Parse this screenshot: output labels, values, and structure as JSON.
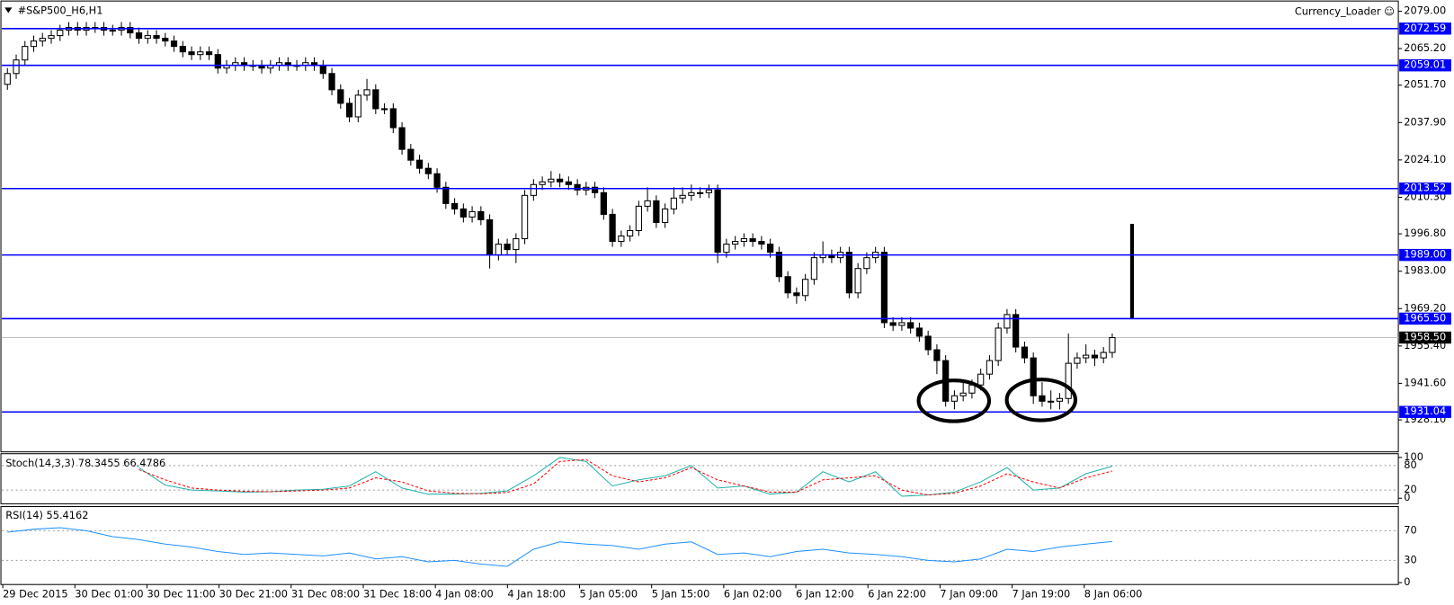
{
  "chart_data": [
    {
      "type": "candlestick",
      "title": "#S&P500_H6,H1",
      "corner_text": "Currency_Loader ☺",
      "open": [
        2052,
        2056,
        2061,
        2066,
        2068,
        2069,
        2070,
        2072,
        2073,
        2072,
        2073,
        2073,
        2072,
        2072,
        2073,
        2071,
        2069,
        2070,
        2069,
        2068,
        2066,
        2064,
        2063,
        2064,
        2063,
        2058,
        2059,
        2060,
        2059,
        2059,
        2058,
        2059,
        2060,
        2059,
        2059,
        2060,
        2059,
        2056,
        2050,
        2045,
        2040,
        2048,
        2050,
        2043,
        2043,
        2036,
        2028,
        2024,
        2021,
        2019,
        2014,
        2008,
        2006,
        2003,
        2005,
        2002,
        1989,
        1993,
        1991,
        1995,
        2011,
        2015,
        2016,
        2017,
        2016,
        2015,
        2013,
        2014,
        2012,
        2004,
        1994,
        1996,
        1998,
        2007,
        2009,
        2001,
        2006,
        2010,
        2011,
        2012,
        2012,
        2013,
        1990,
        1993,
        1994,
        1995,
        1994,
        1993,
        1990,
        1981,
        1975,
        1974,
        1980,
        1988,
        1989,
        1988,
        1990,
        1975,
        1984,
        1988,
        1990,
        1964,
        1963,
        1964,
        1962,
        1959,
        1954,
        1950,
        1935,
        1937,
        1938,
        1941,
        1945,
        1950,
        1962,
        1967,
        1955,
        1951,
        1937,
        1935,
        1935,
        1936,
        1949,
        1951,
        1952,
        1951,
        1953
      ],
      "high": [
        2058,
        2063,
        2068,
        2070,
        2071,
        2072,
        2074,
        2075,
        2075,
        2075,
        2075,
        2075,
        2074,
        2075,
        2075,
        2073,
        2072,
        2072,
        2071,
        2070,
        2068,
        2066,
        2066,
        2066,
        2065,
        2061,
        2062,
        2062,
        2061,
        2061,
        2061,
        2062,
        2062,
        2061,
        2062,
        2062,
        2061,
        2058,
        2052,
        2047,
        2050,
        2054,
        2052,
        2045,
        2045,
        2038,
        2030,
        2026,
        2023,
        2021,
        2016,
        2010,
        2008,
        2007,
        2007,
        2004,
        1995,
        1995,
        1997,
        2013,
        2017,
        2018,
        2020,
        2019,
        2018,
        2017,
        2016,
        2016,
        2014,
        2006,
        1998,
        2000,
        2009,
        2014,
        2011,
        2008,
        2014,
        2014,
        2015,
        2014,
        2015,
        2015,
        1995,
        1996,
        1997,
        1997,
        1996,
        1995,
        1992,
        1983,
        1977,
        1982,
        1990,
        1994,
        1991,
        1992,
        1992,
        1986,
        1990,
        1992,
        1992,
        1966,
        1966,
        1966,
        1964,
        1961,
        1956,
        1952,
        1939,
        1942,
        1943,
        1947,
        1952,
        1964,
        1969,
        1969,
        1957,
        1953,
        1942,
        1939,
        1938,
        1960,
        1953,
        1956,
        1954,
        1955,
        1960
      ],
      "low": [
        2050,
        2054,
        2059,
        2064,
        2066,
        2067,
        2068,
        2070,
        2070,
        2070,
        2071,
        2070,
        2070,
        2070,
        2069,
        2067,
        2067,
        2067,
        2066,
        2064,
        2062,
        2061,
        2061,
        2061,
        2056,
        2056,
        2057,
        2057,
        2057,
        2056,
        2056,
        2057,
        2057,
        2057,
        2057,
        2057,
        2054,
        2048,
        2043,
        2038,
        2038,
        2046,
        2041,
        2041,
        2034,
        2026,
        2022,
        2019,
        2017,
        2012,
        2006,
        2004,
        2001,
        2001,
        2000,
        1984,
        1987,
        1989,
        1986,
        1993,
        2009,
        2013,
        2014,
        2014,
        2013,
        2011,
        2011,
        2010,
        2002,
        1992,
        1992,
        1994,
        1996,
        2005,
        1999,
        1999,
        2004,
        2008,
        2009,
        2010,
        2010,
        1986,
        1988,
        1991,
        1992,
        1992,
        1991,
        1988,
        1979,
        1973,
        1971,
        1972,
        1978,
        1986,
        1986,
        1986,
        1973,
        1973,
        1982,
        1986,
        1962,
        1961,
        1961,
        1960,
        1957,
        1952,
        1945,
        1933,
        1932,
        1935,
        1936,
        1939,
        1943,
        1948,
        1960,
        1953,
        1949,
        1934,
        1933,
        1932,
        1932,
        1934,
        1947,
        1949,
        1948,
        1949,
        1951
      ],
      "close": [
        2056,
        2061,
        2066,
        2068,
        2069,
        2070,
        2072,
        2073,
        2072,
        2073,
        2073,
        2072,
        2072,
        2073,
        2071,
        2069,
        2070,
        2069,
        2068,
        2066,
        2064,
        2063,
        2064,
        2063,
        2058,
        2059,
        2060,
        2059,
        2059,
        2058,
        2059,
        2060,
        2059,
        2059,
        2060,
        2059,
        2056,
        2050,
        2045,
        2040,
        2048,
        2050,
        2043,
        2043,
        2036,
        2028,
        2024,
        2021,
        2019,
        2014,
        2008,
        2006,
        2003,
        2005,
        2002,
        1989,
        1993,
        1991,
        1995,
        2011,
        2015,
        2016,
        2017,
        2016,
        2015,
        2013,
        2014,
        2012,
        2004,
        1994,
        1996,
        1998,
        2007,
        2009,
        2001,
        2006,
        2010,
        2011,
        2012,
        2012,
        2013,
        1990,
        1993,
        1994,
        1995,
        1994,
        1993,
        1990,
        1981,
        1975,
        1974,
        1980,
        1988,
        1989,
        1988,
        1990,
        1975,
        1984,
        1988,
        1990,
        1964,
        1963,
        1964,
        1962,
        1959,
        1954,
        1950,
        1935,
        1937,
        1938,
        1941,
        1945,
        1950,
        1962,
        1967,
        1955,
        1951,
        1937,
        1935,
        1935,
        1936,
        1949,
        1951,
        1952,
        1951,
        1953,
        1958.5
      ],
      "x_labels": [
        "29 Dec 2015",
        "30 Dec 01:00",
        "30 Dec 11:00",
        "30 Dec 21:00",
        "31 Dec 08:00",
        "31 Dec 18:00",
        "4 Jan 08:00",
        "4 Jan 18:00",
        "5 Jan 05:00",
        "5 Jan 15:00",
        "6 Jan 02:00",
        "6 Jan 12:00",
        "6 Jan 22:00",
        "7 Jan 09:00",
        "7 Jan 19:00",
        "8 Jan 06:00"
      ],
      "ylim": [
        1916.3,
        2081.4
      ],
      "yticks": [
        {
          "value": 2079,
          "label": "2079.00"
        },
        {
          "value": 2065.2,
          "label": "2065.20"
        },
        {
          "value": 2051.7,
          "label": "2051.70"
        },
        {
          "value": 2037.9,
          "label": "2037.90"
        },
        {
          "value": 2024.1,
          "label": "2024.10"
        },
        {
          "value": 2010.3,
          "label": "2010.30"
        },
        {
          "value": 1996.8,
          "label": "1996.80"
        },
        {
          "value": 1983,
          "label": "1983.00"
        },
        {
          "value": 1969.2,
          "label": "1969.20"
        },
        {
          "value": 1955.4,
          "label": "1955.40"
        },
        {
          "value": 1941.6,
          "label": "1941.60"
        },
        {
          "value": 1928.1,
          "label": "1928.10"
        }
      ],
      "levels": [
        2072.59,
        2059.01,
        2013.52,
        {
          "value": 1989,
          "label": "1989.00"
        },
        {
          "value": 1965.5,
          "label": "1965.50"
        },
        1931.04
      ],
      "level_color": "#0000ff",
      "current_price": {
        "value": 1958.5,
        "label": "1958.50"
      },
      "vertical_line": [
        2000.5,
        1965.5
      ],
      "up_color": "#ffffff",
      "down_color": "#000000"
    },
    {
      "type": "line",
      "title": "Stoch(14,3,3) 78.3455 66.4786",
      "ylim": [
        0,
        100
      ],
      "yticks": [
        100,
        80,
        20,
        0
      ],
      "series": [
        {
          "color": "#20b2aa",
          "values": [
            null,
            null,
            null,
            null,
            null,
            75,
            32,
            20,
            18,
            15,
            16,
            20,
            22,
            30,
            65,
            25,
            10,
            10,
            12,
            18,
            55,
            100,
            90,
            30,
            45,
            55,
            80,
            25,
            30,
            10,
            15,
            65,
            40,
            65,
            5,
            8,
            15,
            40,
            75,
            20,
            25,
            60,
            78.3455
          ]
        },
        {
          "color": "#ff0000",
          "dashed": true,
          "values": [
            null,
            null,
            null,
            null,
            null,
            70,
            45,
            25,
            20,
            17,
            16,
            18,
            20,
            25,
            50,
            40,
            18,
            12,
            11,
            14,
            35,
            90,
            95,
            55,
            40,
            50,
            75,
            45,
            30,
            15,
            15,
            45,
            50,
            55,
            20,
            8,
            12,
            30,
            60,
            40,
            25,
            50,
            66.4786
          ]
        }
      ]
    },
    {
      "type": "line",
      "title": "RSI(14) 55.4162",
      "ylim": [
        0,
        100
      ],
      "yticks": [
        70,
        30,
        0
      ],
      "series": [
        {
          "color": "#1e90ff",
          "values": [
            68,
            72,
            74,
            70,
            62,
            58,
            52,
            48,
            42,
            38,
            40,
            38,
            36,
            40,
            32,
            35,
            28,
            30,
            25,
            22,
            45,
            55,
            52,
            50,
            45,
            52,
            55,
            38,
            40,
            35,
            42,
            45,
            40,
            38,
            35,
            30,
            28,
            32,
            45,
            42,
            48,
            52,
            55.4162
          ]
        }
      ]
    }
  ]
}
